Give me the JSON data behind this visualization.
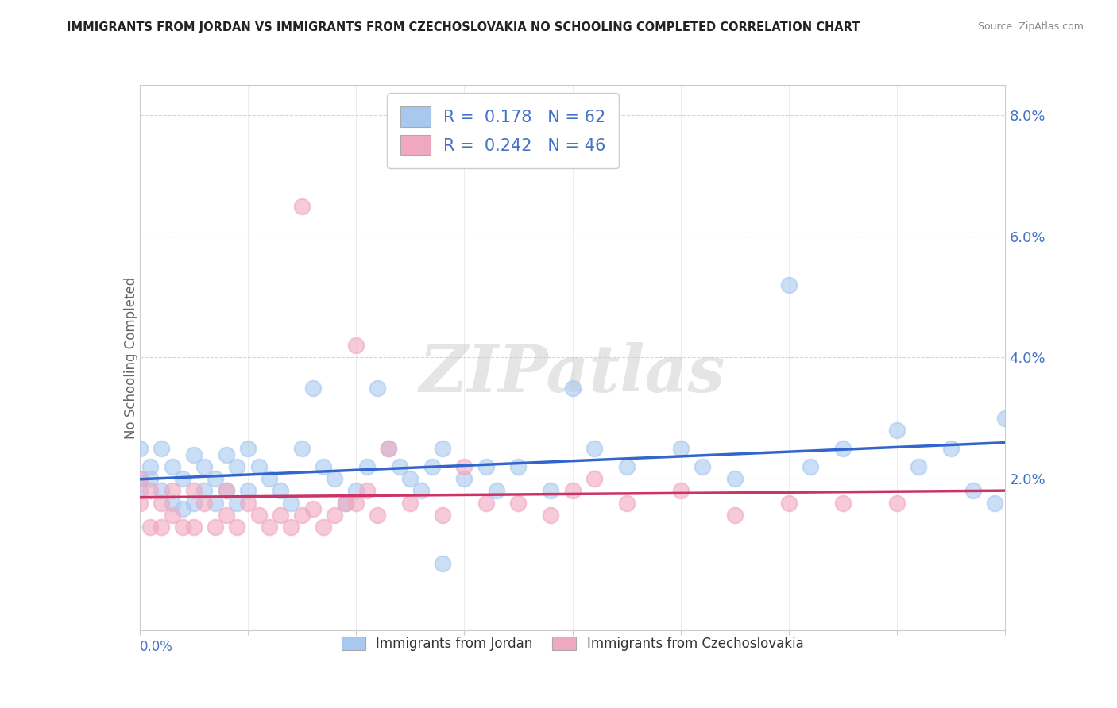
{
  "title": "IMMIGRANTS FROM JORDAN VS IMMIGRANTS FROM CZECHOSLOVAKIA NO SCHOOLING COMPLETED CORRELATION CHART",
  "source": "Source: ZipAtlas.com",
  "ylabel": "No Schooling Completed",
  "xlim": [
    0.0,
    0.08
  ],
  "ylim": [
    -0.005,
    0.085
  ],
  "yticks": [
    0.02,
    0.04,
    0.06,
    0.08
  ],
  "ytick_labels": [
    "2.0%",
    "4.0%",
    "6.0%",
    "8.0%"
  ],
  "jordan_R": 0.178,
  "jordan_N": 62,
  "czech_R": 0.242,
  "czech_N": 46,
  "jordan_color": "#A8C8F0",
  "czech_color": "#F0A8C0",
  "jordan_line_color": "#3366CC",
  "czech_line_color": "#CC3366",
  "background_color": "#FFFFFF",
  "jordan_x": [
    0.0,
    0.0,
    0.0,
    0.001,
    0.001,
    0.002,
    0.002,
    0.003,
    0.003,
    0.004,
    0.004,
    0.005,
    0.005,
    0.006,
    0.006,
    0.007,
    0.007,
    0.008,
    0.008,
    0.009,
    0.009,
    0.01,
    0.01,
    0.011,
    0.012,
    0.013,
    0.014,
    0.015,
    0.016,
    0.017,
    0.018,
    0.019,
    0.02,
    0.021,
    0.022,
    0.023,
    0.024,
    0.025,
    0.026,
    0.027,
    0.028,
    0.03,
    0.032,
    0.033,
    0.035,
    0.038,
    0.04,
    0.042,
    0.045,
    0.05,
    0.052,
    0.055,
    0.06,
    0.062,
    0.065,
    0.07,
    0.072,
    0.075,
    0.077,
    0.079,
    0.08,
    0.028
  ],
  "jordan_y": [
    0.025,
    0.02,
    0.018,
    0.022,
    0.02,
    0.025,
    0.018,
    0.022,
    0.016,
    0.02,
    0.015,
    0.024,
    0.016,
    0.022,
    0.018,
    0.02,
    0.016,
    0.024,
    0.018,
    0.022,
    0.016,
    0.025,
    0.018,
    0.022,
    0.02,
    0.018,
    0.016,
    0.025,
    0.035,
    0.022,
    0.02,
    0.016,
    0.018,
    0.022,
    0.035,
    0.025,
    0.022,
    0.02,
    0.018,
    0.022,
    0.025,
    0.02,
    0.022,
    0.018,
    0.022,
    0.018,
    0.035,
    0.025,
    0.022,
    0.025,
    0.022,
    0.02,
    0.052,
    0.022,
    0.025,
    0.028,
    0.022,
    0.025,
    0.018,
    0.016,
    0.03,
    0.006
  ],
  "czech_x": [
    0.0,
    0.0,
    0.001,
    0.001,
    0.002,
    0.002,
    0.003,
    0.003,
    0.004,
    0.005,
    0.005,
    0.006,
    0.007,
    0.008,
    0.008,
    0.009,
    0.01,
    0.011,
    0.012,
    0.013,
    0.014,
    0.015,
    0.016,
    0.017,
    0.018,
    0.019,
    0.02,
    0.021,
    0.022,
    0.023,
    0.025,
    0.028,
    0.03,
    0.032,
    0.035,
    0.038,
    0.04,
    0.042,
    0.045,
    0.05,
    0.055,
    0.06,
    0.065,
    0.07,
    0.015,
    0.02
  ],
  "czech_y": [
    0.02,
    0.016,
    0.018,
    0.012,
    0.016,
    0.012,
    0.018,
    0.014,
    0.012,
    0.018,
    0.012,
    0.016,
    0.012,
    0.018,
    0.014,
    0.012,
    0.016,
    0.014,
    0.012,
    0.014,
    0.012,
    0.014,
    0.015,
    0.012,
    0.014,
    0.016,
    0.016,
    0.018,
    0.014,
    0.025,
    0.016,
    0.014,
    0.022,
    0.016,
    0.016,
    0.014,
    0.018,
    0.02,
    0.016,
    0.018,
    0.014,
    0.016,
    0.016,
    0.016,
    0.065,
    0.042
  ]
}
